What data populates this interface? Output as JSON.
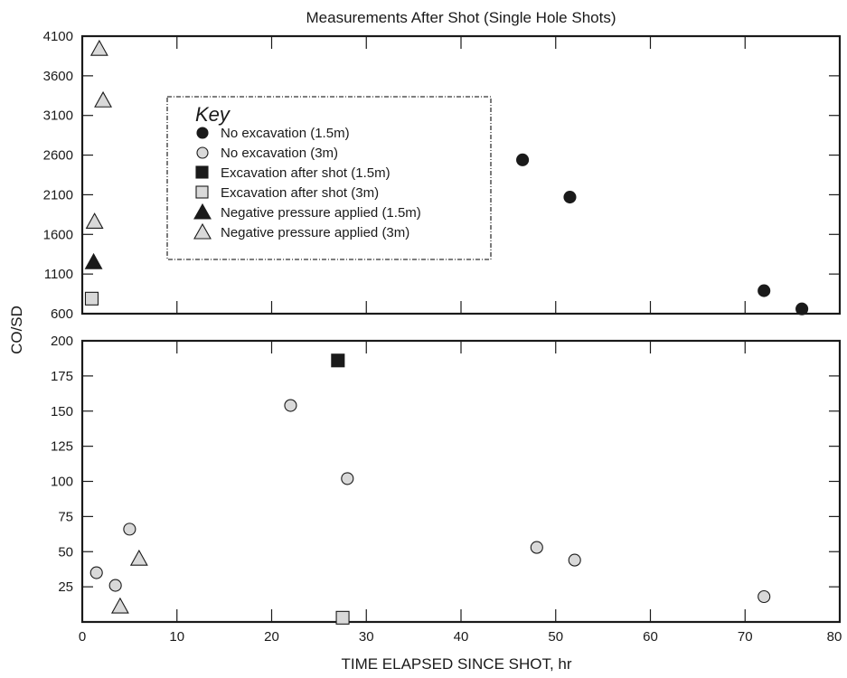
{
  "chart_data": {
    "type": "scatter",
    "title": "Measurements After Shot (Single Hole Shots)",
    "xlabel": "TIME ELAPSED SINCE SHOT, hr",
    "ylabel": "CO/SD",
    "xlim": [
      0,
      80
    ],
    "x_ticks": [
      "0",
      "10",
      "20",
      "30",
      "40",
      "50",
      "60",
      "70",
      "80"
    ],
    "legend_title": "Key",
    "legend_placement": "top-left of upper panel",
    "panels": [
      {
        "name": "upper",
        "ylim": [
          600,
          4100
        ],
        "y_ticks": [
          "600",
          "1100",
          "1600",
          "2100",
          "2600",
          "3100",
          "3600",
          "4100"
        ]
      },
      {
        "name": "lower",
        "ylim": [
          0,
          200
        ],
        "y_ticks": [
          "25",
          "50",
          "75",
          "100",
          "125",
          "150",
          "175",
          "200"
        ]
      }
    ],
    "series": [
      {
        "name": "No excavation (1.5m)",
        "marker": "circle",
        "fill": "#1a1a1a",
        "points": [
          {
            "x": 46.5,
            "y": 2540,
            "panel": "upper"
          },
          {
            "x": 51.5,
            "y": 2070,
            "panel": "upper"
          },
          {
            "x": 72,
            "y": 890,
            "panel": "upper"
          },
          {
            "x": 76,
            "y": 660,
            "panel": "upper"
          }
        ]
      },
      {
        "name": "No excavation (3m)",
        "marker": "circle",
        "fill": "#d9d9d9",
        "points": [
          {
            "x": 1.5,
            "y": 35,
            "panel": "lower"
          },
          {
            "x": 3.5,
            "y": 26,
            "panel": "lower"
          },
          {
            "x": 5,
            "y": 66,
            "panel": "lower"
          },
          {
            "x": 22,
            "y": 154,
            "panel": "lower"
          },
          {
            "x": 28,
            "y": 102,
            "panel": "lower"
          },
          {
            "x": 48,
            "y": 53,
            "panel": "lower"
          },
          {
            "x": 52,
            "y": 44,
            "panel": "lower"
          },
          {
            "x": 72,
            "y": 18,
            "panel": "lower"
          }
        ]
      },
      {
        "name": "Excavation after shot (1.5m)",
        "marker": "square",
        "fill": "#1a1a1a",
        "points": [
          {
            "x": 27,
            "y": 186,
            "panel": "lower"
          }
        ]
      },
      {
        "name": "Excavation after shot (3m)",
        "marker": "square",
        "fill": "#d9d9d9",
        "points": [
          {
            "x": 1,
            "y": 790,
            "panel": "upper"
          },
          {
            "x": 27.5,
            "y": 3,
            "panel": "lower"
          }
        ]
      },
      {
        "name": "Negative pressure applied (1.5m)",
        "marker": "triangle",
        "fill": "#1a1a1a",
        "points": [
          {
            "x": 1.2,
            "y": 1250,
            "panel": "upper"
          }
        ]
      },
      {
        "name": "Negative pressure applied (3m)",
        "marker": "triangle",
        "fill": "#d9d9d9",
        "points": [
          {
            "x": 1.8,
            "y": 3940,
            "panel": "upper"
          },
          {
            "x": 2.2,
            "y": 3290,
            "panel": "upper"
          },
          {
            "x": 1.3,
            "y": 1760,
            "panel": "upper"
          },
          {
            "x": 6,
            "y": 45,
            "panel": "lower"
          },
          {
            "x": 4,
            "y": 11,
            "panel": "lower"
          }
        ]
      }
    ]
  }
}
